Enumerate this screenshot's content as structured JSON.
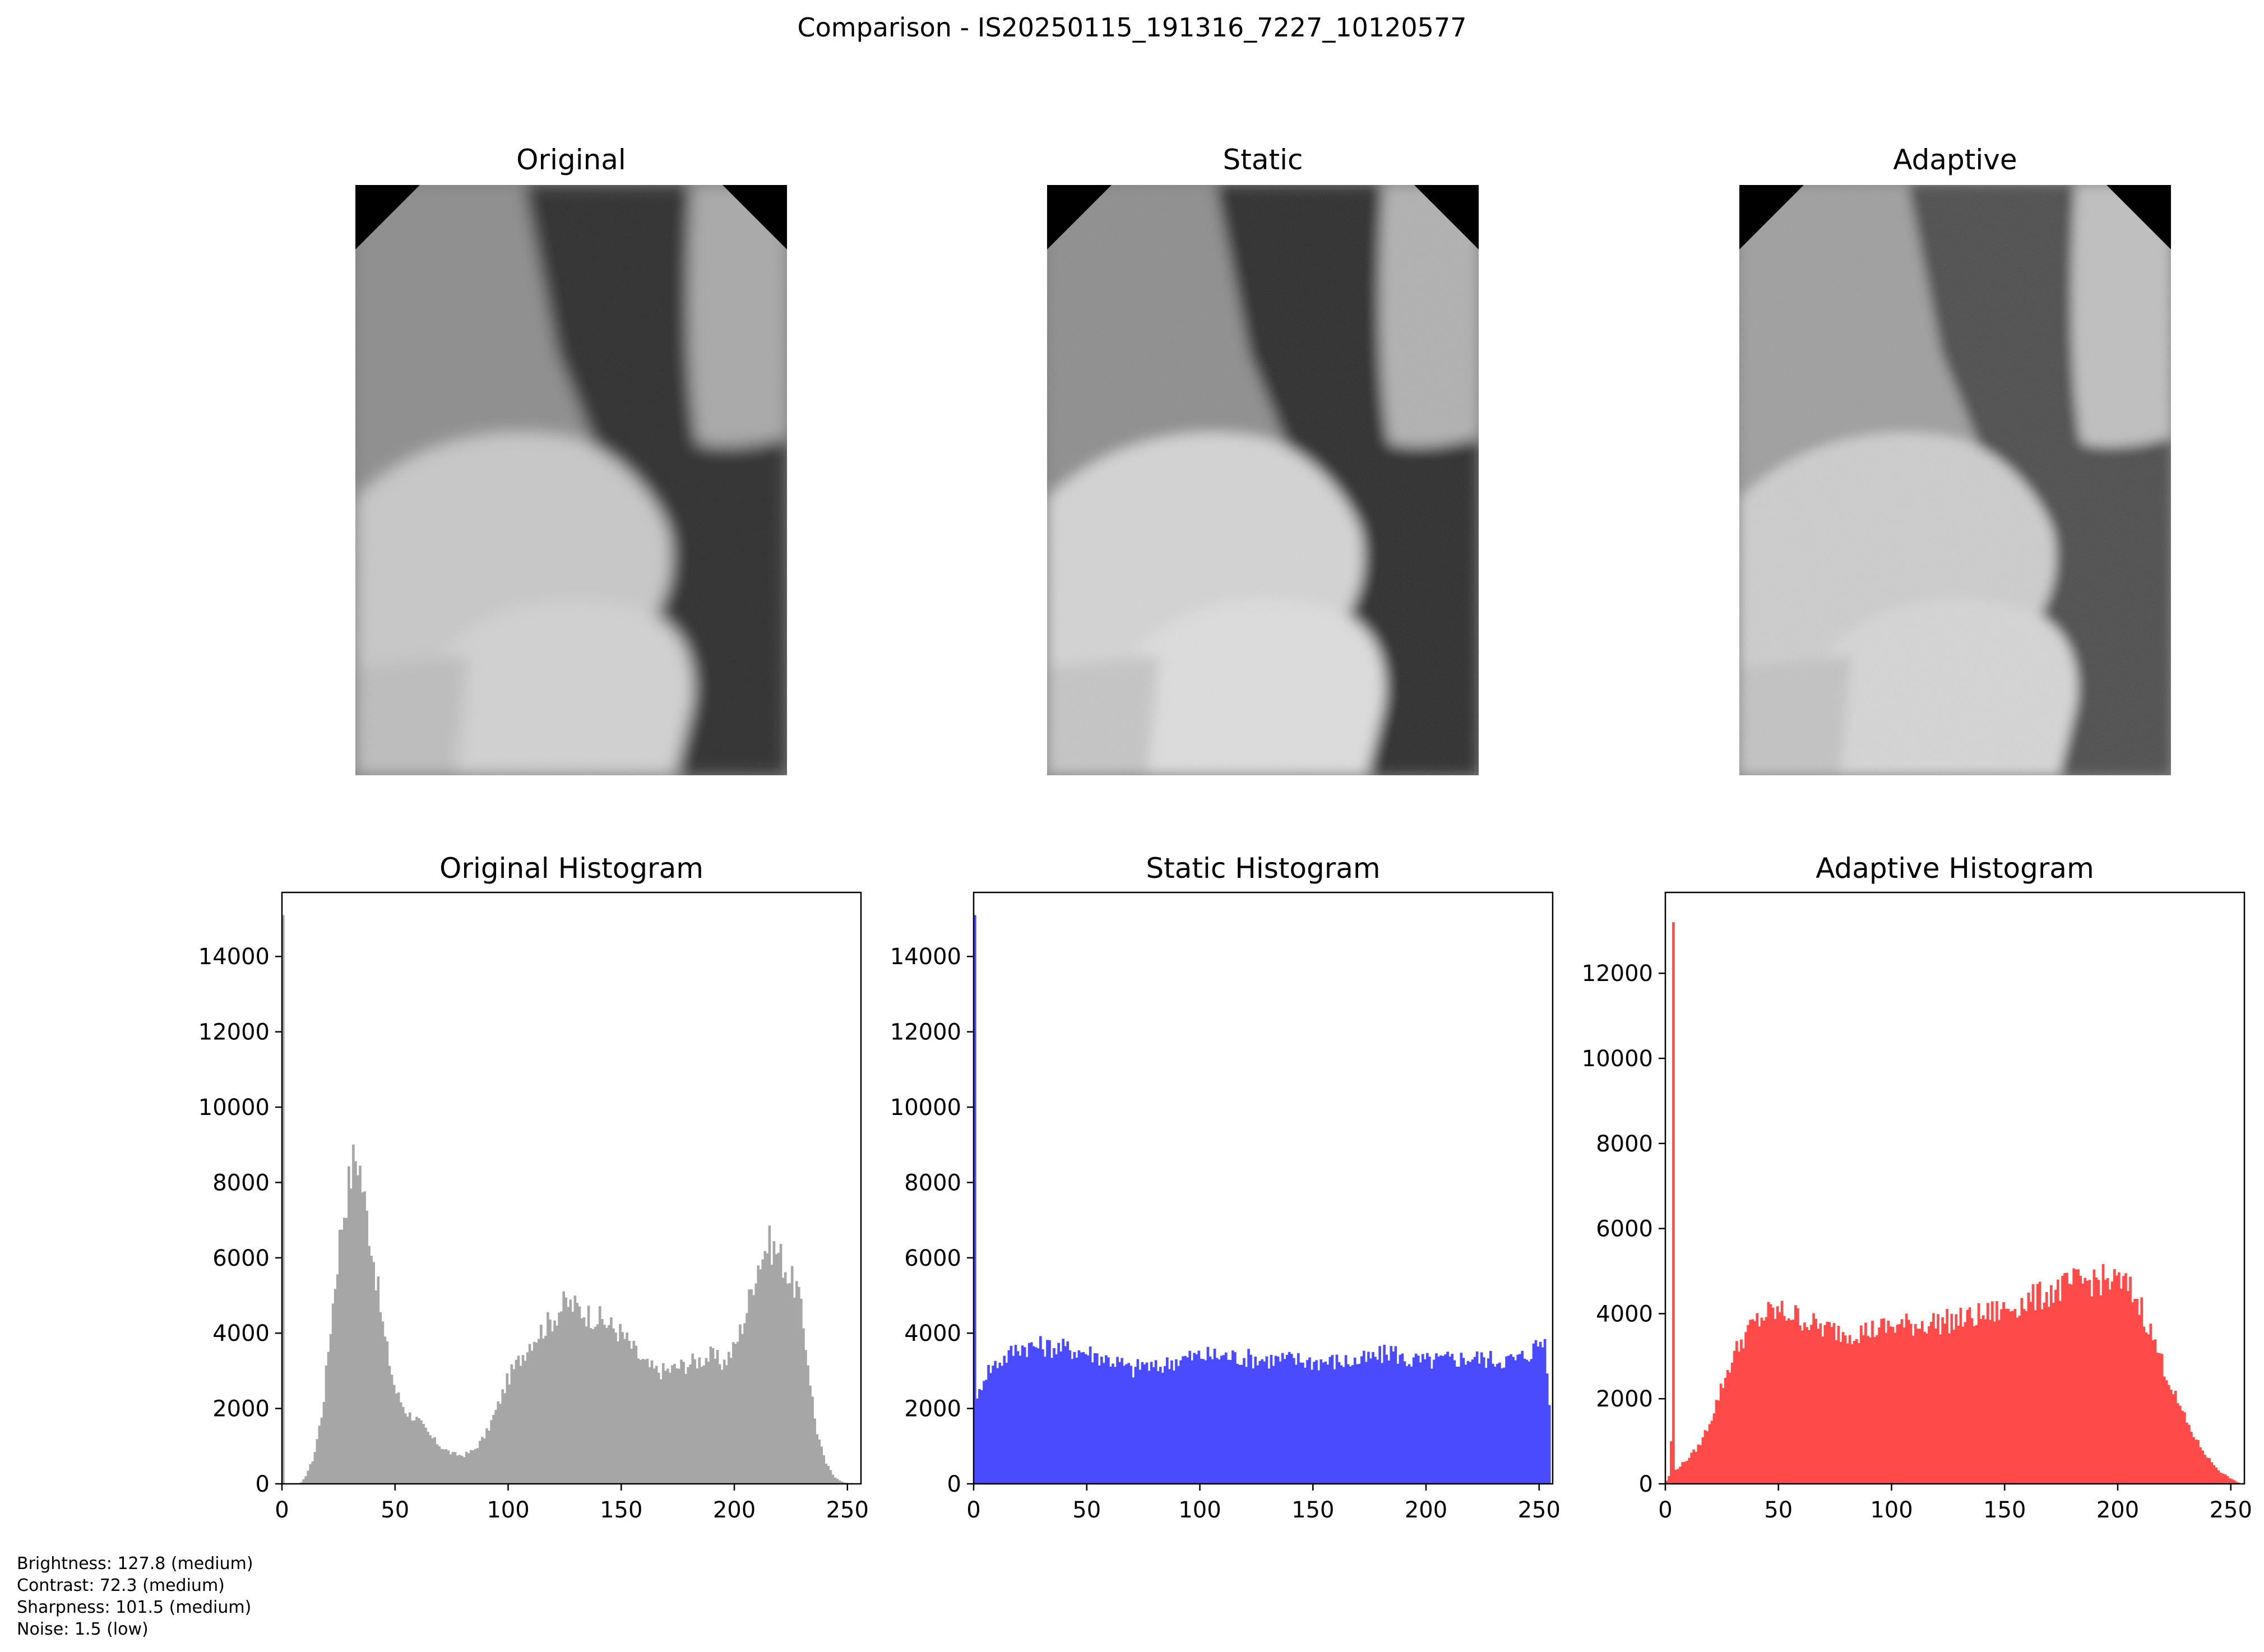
{
  "figure": {
    "title": "Comparison - IS20250115_191316_7227_10120577"
  },
  "images": [
    {
      "id": "original",
      "title": "Original"
    },
    {
      "id": "static",
      "title": "Static"
    },
    {
      "id": "adaptive",
      "title": "Adaptive"
    }
  ],
  "metrics": [
    "Brightness: 127.8 (medium)",
    "Contrast: 72.3 (medium)",
    "Sharpness: 101.5 (medium)",
    "Noise: 1.5 (low)"
  ],
  "chart_data": [
    {
      "type": "bar",
      "title": "Original Histogram",
      "xlabel": "",
      "ylabel": "",
      "xlim": [
        0,
        255
      ],
      "ylim": [
        0,
        15700
      ],
      "xticks": [
        0,
        50,
        100,
        150,
        200,
        250
      ],
      "yticks": [
        0,
        2000,
        4000,
        6000,
        8000,
        10000,
        12000,
        14000
      ],
      "color": "#a6a6a6",
      "bins": 256,
      "profile": [
        [
          0,
          0
        ],
        [
          8,
          0
        ],
        [
          10,
          150
        ],
        [
          14,
          700
        ],
        [
          18,
          2000
        ],
        [
          22,
          4500
        ],
        [
          26,
          6800
        ],
        [
          29,
          7800
        ],
        [
          32,
          8700
        ],
        [
          34,
          8600
        ],
        [
          36,
          7700
        ],
        [
          40,
          6200
        ],
        [
          45,
          4000
        ],
        [
          50,
          2500
        ],
        [
          55,
          1900
        ],
        [
          60,
          1700
        ],
        [
          65,
          1300
        ],
        [
          70,
          1000
        ],
        [
          75,
          800
        ],
        [
          80,
          750
        ],
        [
          85,
          900
        ],
        [
          90,
          1300
        ],
        [
          95,
          2000
        ],
        [
          100,
          2800
        ],
        [
          105,
          3300
        ],
        [
          110,
          3800
        ],
        [
          115,
          4100
        ],
        [
          120,
          4400
        ],
        [
          125,
          4800
        ],
        [
          130,
          4700
        ],
        [
          135,
          4500
        ],
        [
          140,
          4400
        ],
        [
          145,
          4200
        ],
        [
          150,
          4000
        ],
        [
          155,
          3600
        ],
        [
          160,
          3200
        ],
        [
          165,
          3000
        ],
        [
          170,
          3000
        ],
        [
          175,
          3100
        ],
        [
          180,
          3200
        ],
        [
          185,
          3300
        ],
        [
          190,
          3400
        ],
        [
          195,
          3200
        ],
        [
          200,
          3600
        ],
        [
          205,
          4500
        ],
        [
          210,
          5800
        ],
        [
          215,
          6400
        ],
        [
          220,
          6100
        ],
        [
          225,
          5400
        ],
        [
          228,
          5200
        ],
        [
          232,
          3500
        ],
        [
          236,
          1500
        ],
        [
          240,
          600
        ],
        [
          244,
          200
        ],
        [
          248,
          40
        ],
        [
          252,
          0
        ],
        [
          255,
          0
        ]
      ],
      "spikes": [
        [
          0,
          15100
        ]
      ]
    },
    {
      "type": "bar",
      "title": "Static Histogram",
      "xlabel": "",
      "ylabel": "",
      "xlim": [
        0,
        255
      ],
      "ylim": [
        0,
        15700
      ],
      "xticks": [
        0,
        50,
        100,
        150,
        200,
        250
      ],
      "yticks": [
        0,
        2000,
        4000,
        6000,
        8000,
        10000,
        12000,
        14000
      ],
      "color": "#4a4aff",
      "bins": 256,
      "profile": [
        [
          0,
          1700
        ],
        [
          2,
          2300
        ],
        [
          4,
          2800
        ],
        [
          6,
          3000
        ],
        [
          10,
          3200
        ],
        [
          15,
          3400
        ],
        [
          20,
          3650
        ],
        [
          30,
          3650
        ],
        [
          40,
          3600
        ],
        [
          50,
          3500
        ],
        [
          55,
          3400
        ],
        [
          60,
          3300
        ],
        [
          65,
          3200
        ],
        [
          70,
          3000
        ],
        [
          75,
          3200
        ],
        [
          80,
          3050
        ],
        [
          90,
          3300
        ],
        [
          100,
          3400
        ],
        [
          110,
          3400
        ],
        [
          120,
          3350
        ],
        [
          130,
          3300
        ],
        [
          140,
          3300
        ],
        [
          150,
          3250
        ],
        [
          160,
          3250
        ],
        [
          170,
          3250
        ],
        [
          180,
          3400
        ],
        [
          185,
          3550
        ],
        [
          190,
          3300
        ],
        [
          200,
          3250
        ],
        [
          210,
          3300
        ],
        [
          220,
          3350
        ],
        [
          230,
          3300
        ],
        [
          240,
          3300
        ],
        [
          245,
          3450
        ],
        [
          250,
          3750
        ],
        [
          253,
          3800
        ],
        [
          254,
          2500
        ],
        [
          255,
          1400
        ]
      ],
      "spikes": [
        [
          0,
          15100
        ]
      ]
    },
    {
      "type": "bar",
      "title": "Adaptive Histogram",
      "xlabel": "",
      "ylabel": "",
      "xlim": [
        0,
        255
      ],
      "ylim": [
        0,
        13900
      ],
      "xticks": [
        0,
        50,
        100,
        150,
        200,
        250
      ],
      "yticks": [
        0,
        2000,
        4000,
        6000,
        8000,
        10000,
        12000
      ],
      "color": "#ff4a4a",
      "bins": 256,
      "profile": [
        [
          0,
          0
        ],
        [
          1,
          150
        ],
        [
          2,
          200
        ],
        [
          4,
          300
        ],
        [
          6,
          400
        ],
        [
          10,
          600
        ],
        [
          15,
          900
        ],
        [
          20,
          1500
        ],
        [
          25,
          2300
        ],
        [
          30,
          3000
        ],
        [
          35,
          3500
        ],
        [
          40,
          3800
        ],
        [
          45,
          4000
        ],
        [
          50,
          4050
        ],
        [
          55,
          4000
        ],
        [
          60,
          3900
        ],
        [
          65,
          3750
        ],
        [
          70,
          3650
        ],
        [
          80,
          3550
        ],
        [
          90,
          3600
        ],
        [
          100,
          3700
        ],
        [
          110,
          3750
        ],
        [
          120,
          3800
        ],
        [
          130,
          3850
        ],
        [
          140,
          3950
        ],
        [
          150,
          4100
        ],
        [
          160,
          4300
        ],
        [
          170,
          4500
        ],
        [
          180,
          4700
        ],
        [
          190,
          4800
        ],
        [
          200,
          4750
        ],
        [
          205,
          4600
        ],
        [
          210,
          4200
        ],
        [
          215,
          3500
        ],
        [
          220,
          2800
        ],
        [
          225,
          2100
        ],
        [
          230,
          1500
        ],
        [
          235,
          1000
        ],
        [
          240,
          600
        ],
        [
          245,
          300
        ],
        [
          250,
          120
        ],
        [
          253,
          40
        ],
        [
          255,
          0
        ]
      ],
      "spikes": [
        [
          3,
          13200
        ],
        [
          2,
          1000
        ]
      ]
    }
  ]
}
